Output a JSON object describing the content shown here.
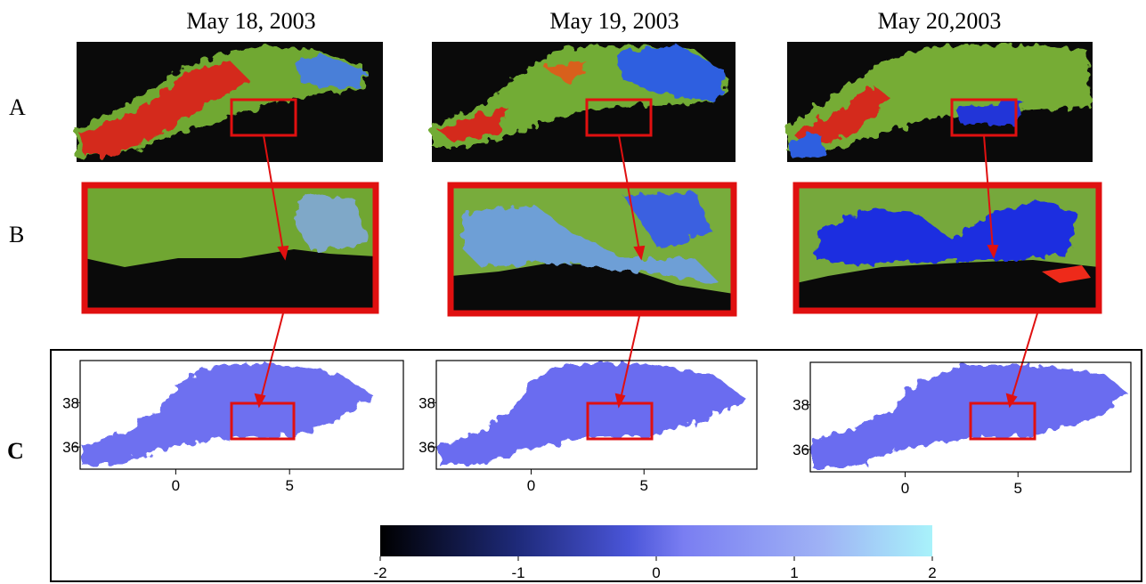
{
  "columns": [
    {
      "date": "May 18, 2003"
    },
    {
      "date": "May 19, 2003"
    },
    {
      "date": "May 20,2003"
    }
  ],
  "rows": [
    "A",
    "B",
    "C"
  ],
  "maps": [
    {
      "xlim": [
        -4.2,
        10
      ],
      "ylim": [
        35,
        39.9
      ],
      "xticks": [
        0,
        5
      ],
      "yticks": [
        38,
        36
      ]
    },
    {
      "xlim": [
        -4.2,
        10
      ],
      "ylim": [
        35,
        39.9
      ],
      "xticks": [
        0,
        5
      ],
      "yticks": [
        38,
        36
      ]
    },
    {
      "xlim": [
        -4.2,
        10
      ],
      "ylim": [
        35,
        39.9
      ],
      "xticks": [
        0,
        5
      ],
      "yticks": [
        38,
        36
      ]
    }
  ],
  "colorbar": {
    "lim": [
      -2,
      2
    ],
    "ticks": [
      -2,
      -1,
      0,
      1,
      2
    ]
  }
}
